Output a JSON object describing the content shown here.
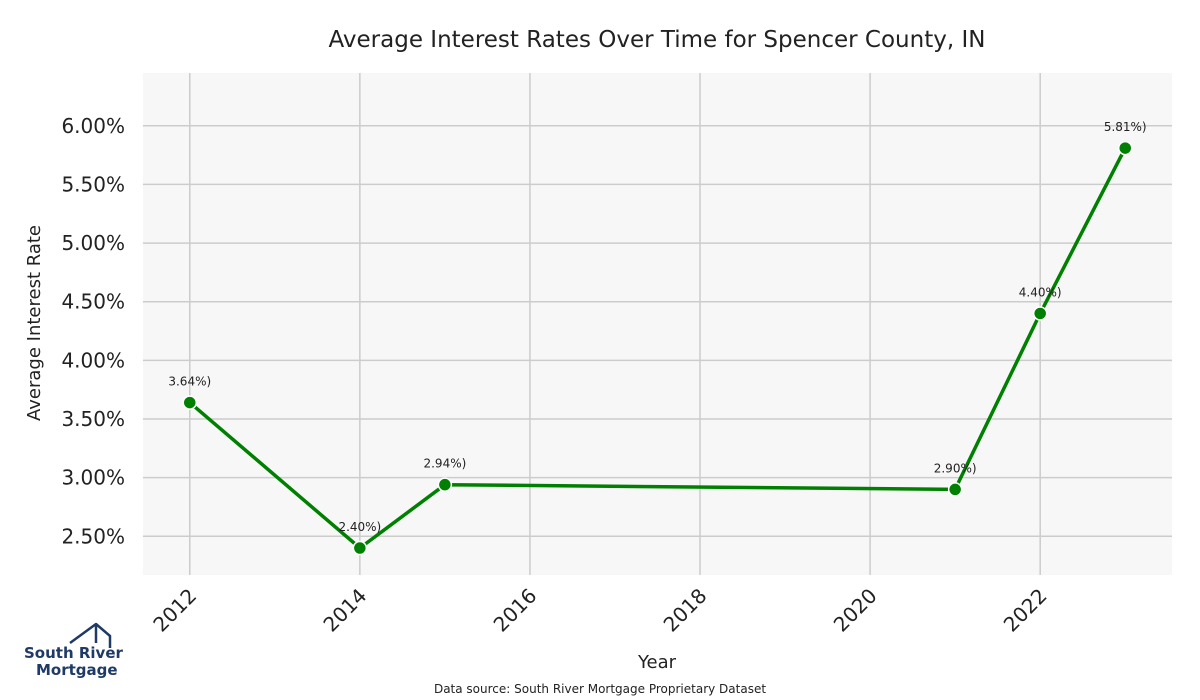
{
  "chart_data": {
    "type": "line",
    "title": "Average Interest Rates Over Time for Spencer County, IN",
    "xlabel": "Year",
    "ylabel": "Average Interest Rate",
    "x_ticks": [
      "2012",
      "2014",
      "2016",
      "2018",
      "2020",
      "2022"
    ],
    "y_ticks": [
      "2.50%",
      "3.00%",
      "3.50%",
      "4.00%",
      "4.50%",
      "5.00%",
      "5.50%",
      "6.00%"
    ],
    "xlim": [
      2011.45,
      2023.55
    ],
    "ylim": [
      2.17,
      6.45
    ],
    "grid": true,
    "series": [
      {
        "x": [
          2012,
          2014,
          2015,
          2021,
          2022,
          2023
        ],
        "values": [
          3.64,
          2.4,
          2.94,
          2.9,
          4.4,
          5.81
        ],
        "labels": [
          "3.64%)",
          "2.40%)",
          "2.94%)",
          "2.90%)",
          "4.40%)",
          "5.81%)"
        ],
        "color": "#008000"
      }
    ]
  },
  "source_text": "Data source: South River Mortgage Proprietary Dataset",
  "logo": {
    "line1": "South River",
    "line2": "Mortgage",
    "color": "#1f3a66"
  }
}
